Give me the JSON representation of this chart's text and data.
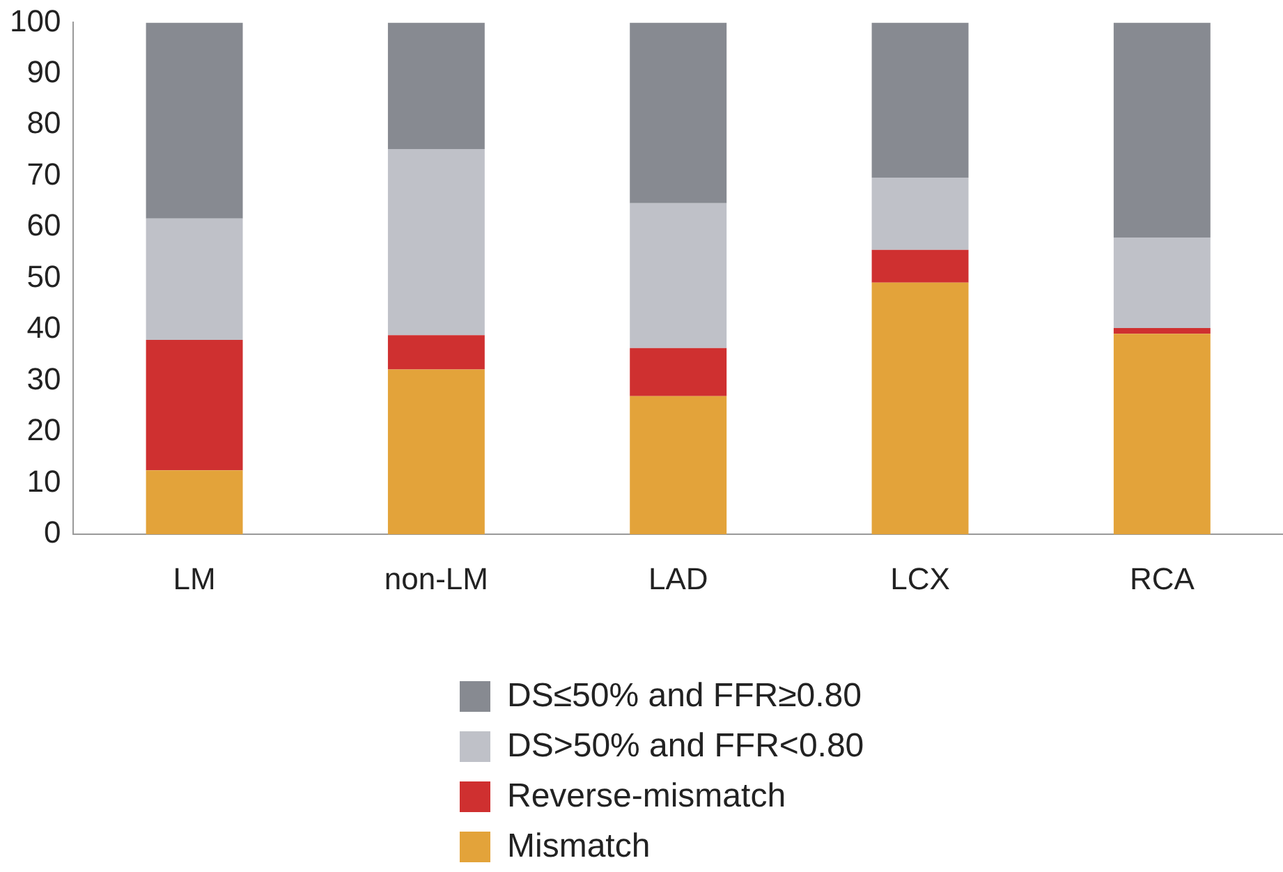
{
  "chart_data": {
    "type": "bar",
    "stacked": true,
    "categories": [
      "LM",
      "non-LM",
      "LAD",
      "LCX",
      "RCA"
    ],
    "series": [
      {
        "name": "Mismatch",
        "color": "#e3a33a",
        "values": [
          12.5,
          32.2,
          27,
          49.2,
          39.2
        ]
      },
      {
        "name": "Reverse-mismatch",
        "color": "#cf3030",
        "values": [
          25.5,
          6.7,
          9.4,
          6.4,
          1.1
        ]
      },
      {
        "name": "DS>50% and FFR<0.80",
        "color": "#bfc1c8",
        "values": [
          23.7,
          36.4,
          28.3,
          14.1,
          17.7
        ]
      },
      {
        "name": "DS≤50% and FFR≥0.80",
        "color": "#878a91",
        "values": [
          38.3,
          24.7,
          35.3,
          30.3,
          42
        ]
      }
    ],
    "ylim": [
      0,
      100
    ],
    "yticks": [
      0,
      10,
      20,
      30,
      40,
      50,
      60,
      70,
      80,
      90,
      100
    ],
    "grid": false,
    "legend": "bottom"
  }
}
